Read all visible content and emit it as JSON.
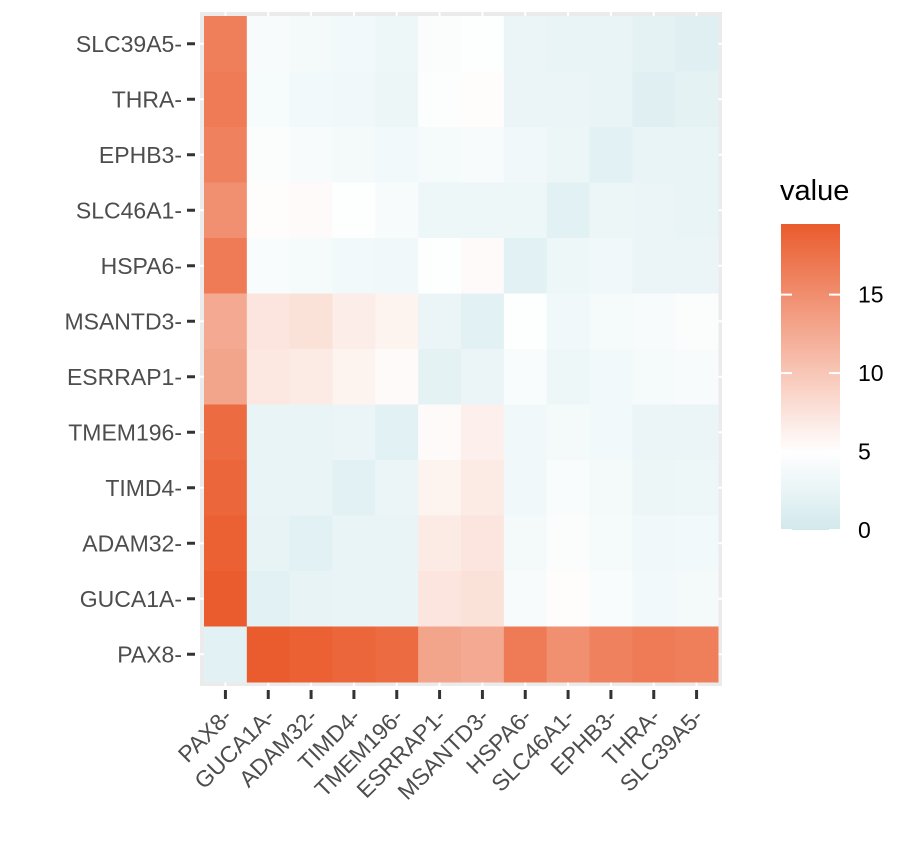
{
  "chart_data": {
    "type": "heatmap",
    "title": "",
    "xlabel": "",
    "ylabel": "",
    "x_categories": [
      "PAX8-",
      "GUCA1A-",
      "ADAM32-",
      "TIMD4-",
      "TMEM196-",
      "ESRRAP1-",
      "MSANTD3-",
      "HSPA6-",
      "SLC46A1-",
      "EPHB3-",
      "THRA-",
      "SLC39A5-"
    ],
    "y_categories_top_to_bottom": [
      "SLC39A5-",
      "THRA-",
      "EPHB3-",
      "SLC46A1-",
      "HSPA6-",
      "MSANTD3-",
      "ESRRAP1-",
      "TMEM196-",
      "TIMD4-",
      "ADAM32-",
      "GUCA1A-",
      "PAX8-"
    ],
    "values": [
      [
        16.3,
        4.2,
        3.8,
        3.6,
        3.1,
        4.5,
        4.8,
        2.8,
        2.6,
        2.5,
        2.0,
        1.6
      ],
      [
        16.7,
        4.0,
        3.6,
        3.3,
        3.0,
        4.7,
        5.2,
        2.8,
        2.8,
        2.6,
        1.6,
        2.0
      ],
      [
        16.1,
        4.6,
        4.1,
        3.8,
        3.6,
        3.9,
        4.1,
        3.4,
        2.9,
        1.8,
        2.6,
        2.5
      ],
      [
        14.8,
        5.2,
        5.4,
        4.8,
        4.2,
        3.1,
        3.1,
        3.1,
        1.8,
        2.9,
        2.8,
        2.6
      ],
      [
        16.7,
        4.3,
        3.9,
        3.6,
        3.4,
        4.8,
        5.4,
        1.8,
        3.1,
        3.4,
        2.8,
        2.8
      ],
      [
        12.5,
        7.3,
        7.6,
        6.6,
        6.1,
        2.8,
        1.8,
        4.8,
        3.3,
        3.9,
        4.2,
        4.6
      ],
      [
        13.0,
        7.1,
        6.8,
        6.1,
        5.4,
        2.0,
        2.8,
        4.3,
        3.1,
        3.6,
        3.9,
        4.2
      ],
      [
        18.1,
        2.5,
        2.5,
        2.8,
        1.8,
        5.4,
        6.3,
        3.4,
        3.8,
        3.6,
        2.8,
        2.8
      ],
      [
        18.5,
        2.5,
        2.5,
        1.8,
        2.8,
        6.1,
        6.8,
        3.4,
        4.3,
        3.8,
        3.0,
        3.1
      ],
      [
        19.0,
        2.3,
        1.8,
        2.5,
        2.5,
        6.8,
        7.3,
        3.8,
        4.6,
        3.9,
        3.4,
        3.6
      ],
      [
        19.4,
        1.8,
        2.3,
        2.5,
        2.5,
        7.3,
        7.6,
        4.1,
        5.2,
        4.3,
        3.6,
        3.8
      ],
      [
        1.8,
        19.4,
        19.0,
        18.5,
        18.1,
        13.0,
        12.5,
        16.7,
        14.8,
        16.1,
        16.7,
        16.3
      ]
    ],
    "color_scale": {
      "low": "#d2e9ec",
      "mid": "#ffffff",
      "high": "#ea5b2d",
      "midpoint": 5,
      "min": 0,
      "max": 19.5
    },
    "legend": {
      "title": "value",
      "position": "right",
      "ticks": [
        0,
        5,
        10,
        15
      ]
    },
    "panel_background": "#ebebeb",
    "grid": true
  }
}
